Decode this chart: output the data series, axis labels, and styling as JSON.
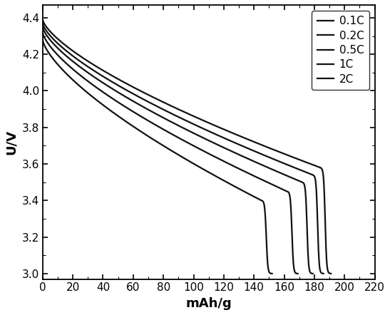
{
  "curves": [
    {
      "label": "0.1C",
      "x_end": 191,
      "start_v": 4.39,
      "v_at_100": 3.84,
      "plateau_end": 3.67,
      "knee_x": 184,
      "knee_v": 3.58,
      "lw": 1.6
    },
    {
      "label": "0.2C",
      "x_end": 186,
      "start_v": 4.37,
      "v_at_100": 3.81,
      "plateau_end": 3.64,
      "knee_x": 179,
      "knee_v": 3.54,
      "lw": 1.6
    },
    {
      "label": "0.5C",
      "x_end": 179,
      "start_v": 4.35,
      "v_at_100": 3.78,
      "plateau_end": 3.61,
      "knee_x": 172,
      "knee_v": 3.5,
      "lw": 1.6
    },
    {
      "label": "1C",
      "x_end": 169,
      "start_v": 4.32,
      "v_at_100": 3.74,
      "plateau_end": 3.57,
      "knee_x": 162,
      "knee_v": 3.45,
      "lw": 1.6
    },
    {
      "label": "2C",
      "x_end": 152,
      "start_v": 4.28,
      "v_at_100": 3.68,
      "plateau_end": 3.51,
      "knee_x": 145,
      "knee_v": 3.4,
      "lw": 1.6
    }
  ],
  "xlim": [
    0,
    220
  ],
  "ylim": [
    2.97,
    4.47
  ],
  "xticks": [
    0,
    20,
    40,
    60,
    80,
    100,
    120,
    140,
    160,
    180,
    200,
    220
  ],
  "yticks": [
    3.0,
    3.2,
    3.4,
    3.6,
    3.8,
    4.0,
    4.2,
    4.4
  ],
  "xlabel": "mAh/g",
  "ylabel": "U/V",
  "legend_loc": "upper right",
  "line_color": "#111111",
  "background_color": "#ffffff",
  "figsize": [
    5.47,
    4.42
  ],
  "dpi": 100
}
